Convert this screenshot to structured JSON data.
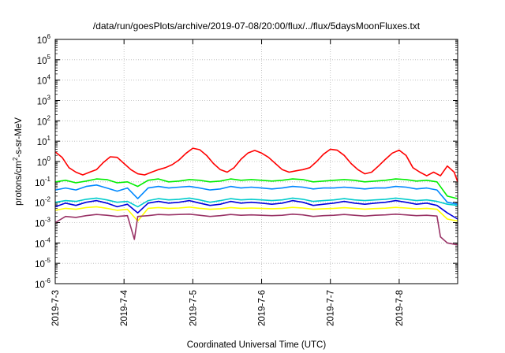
{
  "chart_data": {
    "type": "line",
    "title": "/data/run/goesPlots/archive/2019-07-08/20:00/flux/../flux/5daysMoonFluxes.txt",
    "xlabel": "Coordinated Universal Time (UTC)",
    "ylabel": "protons/cm²-s-sr-MeV",
    "ylabel_parts": {
      "prefix": "protons/cm",
      "sup": "2",
      "suffix": "-s-sr-MeV"
    },
    "yscale": "log",
    "ylim": [
      -6,
      6
    ],
    "xlim": [
      0,
      5.85
    ],
    "x_ticks": [
      {
        "x": 0,
        "label": "2019-7-3"
      },
      {
        "x": 1,
        "label": "2019-7-4"
      },
      {
        "x": 2,
        "label": "2019-7-5"
      },
      {
        "x": 3,
        "label": "2019-7-6"
      },
      {
        "x": 4,
        "label": "2019-7-7"
      },
      {
        "x": 5,
        "label": "2019-7-8"
      }
    ],
    "y_ticks": [
      {
        "exp": 6,
        "base": "10",
        "sup": "6"
      },
      {
        "exp": 5,
        "base": "10",
        "sup": "5"
      },
      {
        "exp": 4,
        "base": "10",
        "sup": "4"
      },
      {
        "exp": 3,
        "base": "10",
        "sup": "3"
      },
      {
        "exp": 2,
        "base": "10",
        "sup": "2"
      },
      {
        "exp": 1,
        "base": "10",
        "sup": "1"
      },
      {
        "exp": 0,
        "base": "10",
        "sup": "0"
      },
      {
        "exp": -1,
        "base": "10",
        "sup": "-1"
      },
      {
        "exp": -2,
        "base": "10",
        "sup": "-2"
      },
      {
        "exp": -3,
        "base": "10",
        "sup": "-3"
      },
      {
        "exp": -4,
        "base": "10",
        "sup": "-4"
      },
      {
        "exp": -5,
        "base": "10",
        "sup": "-5"
      },
      {
        "exp": -6,
        "base": "10",
        "sup": "-6"
      }
    ],
    "grid": true,
    "series": [
      {
        "color": "#ff0000",
        "x": [
          0,
          0.1,
          0.2,
          0.3,
          0.4,
          0.5,
          0.6,
          0.7,
          0.8,
          0.9,
          1.0,
          1.1,
          1.2,
          1.3,
          1.4,
          1.5,
          1.6,
          1.7,
          1.8,
          1.9,
          2.0,
          2.1,
          2.2,
          2.3,
          2.4,
          2.5,
          2.6,
          2.7,
          2.8,
          2.9,
          3.0,
          3.1,
          3.2,
          3.3,
          3.4,
          3.5,
          3.6,
          3.7,
          3.8,
          3.9,
          4.0,
          4.1,
          4.2,
          4.3,
          4.4,
          4.5,
          4.6,
          4.7,
          4.8,
          4.9,
          5.0,
          5.1,
          5.2,
          5.3,
          5.4,
          5.5,
          5.6,
          5.7,
          5.8,
          5.85
        ],
        "y": [
          3.0,
          1.6,
          0.5,
          0.3,
          0.22,
          0.3,
          0.4,
          0.9,
          1.7,
          1.6,
          0.8,
          0.4,
          0.25,
          0.22,
          0.3,
          0.4,
          0.5,
          0.7,
          1.2,
          2.5,
          4.5,
          3.8,
          2.0,
          0.8,
          0.4,
          0.3,
          0.5,
          1.3,
          2.6,
          3.5,
          2.6,
          1.6,
          0.8,
          0.4,
          0.3,
          0.35,
          0.4,
          0.5,
          1.0,
          2.3,
          4.0,
          3.6,
          2.0,
          0.8,
          0.4,
          0.25,
          0.3,
          0.6,
          1.3,
          2.6,
          3.6,
          2.0,
          0.5,
          0.3,
          0.2,
          0.3,
          0.2,
          0.6,
          0.3,
          0.1
        ]
      },
      {
        "color": "#00ee00",
        "x": [
          0,
          0.15,
          0.3,
          0.45,
          0.6,
          0.75,
          0.9,
          1.05,
          1.2,
          1.35,
          1.5,
          1.65,
          1.8,
          1.95,
          2.1,
          2.25,
          2.4,
          2.55,
          2.7,
          2.85,
          3.0,
          3.15,
          3.3,
          3.45,
          3.6,
          3.75,
          3.9,
          4.05,
          4.2,
          4.35,
          4.5,
          4.65,
          4.8,
          4.95,
          5.1,
          5.25,
          5.4,
          5.55,
          5.7,
          5.85
        ],
        "y": [
          0.1,
          0.12,
          0.09,
          0.11,
          0.14,
          0.13,
          0.09,
          0.1,
          0.06,
          0.12,
          0.14,
          0.1,
          0.11,
          0.13,
          0.12,
          0.1,
          0.11,
          0.14,
          0.12,
          0.13,
          0.12,
          0.11,
          0.12,
          0.14,
          0.13,
          0.1,
          0.11,
          0.12,
          0.13,
          0.12,
          0.1,
          0.11,
          0.12,
          0.14,
          0.13,
          0.11,
          0.12,
          0.1,
          0.02,
          0.015
        ]
      },
      {
        "color": "#0088ff",
        "x": [
          0,
          0.15,
          0.3,
          0.45,
          0.6,
          0.75,
          0.9,
          1.05,
          1.2,
          1.35,
          1.5,
          1.65,
          1.8,
          1.95,
          2.1,
          2.25,
          2.4,
          2.55,
          2.7,
          2.85,
          3.0,
          3.15,
          3.3,
          3.45,
          3.6,
          3.75,
          3.9,
          4.05,
          4.2,
          4.35,
          4.5,
          4.65,
          4.8,
          4.95,
          5.1,
          5.25,
          5.4,
          5.55,
          5.7,
          5.85
        ],
        "y": [
          0.04,
          0.05,
          0.04,
          0.06,
          0.07,
          0.05,
          0.035,
          0.05,
          0.015,
          0.05,
          0.06,
          0.05,
          0.055,
          0.06,
          0.05,
          0.04,
          0.045,
          0.06,
          0.05,
          0.055,
          0.05,
          0.045,
          0.05,
          0.06,
          0.055,
          0.045,
          0.05,
          0.05,
          0.055,
          0.05,
          0.045,
          0.05,
          0.05,
          0.06,
          0.055,
          0.045,
          0.05,
          0.04,
          0.01,
          0.008
        ]
      },
      {
        "color": "#00cccc",
        "x": [
          0,
          0.15,
          0.3,
          0.45,
          0.6,
          0.75,
          0.9,
          1.05,
          1.2,
          1.35,
          1.5,
          1.65,
          1.8,
          1.95,
          2.1,
          2.25,
          2.4,
          2.55,
          2.7,
          2.85,
          3.0,
          3.15,
          3.3,
          3.45,
          3.6,
          3.75,
          3.9,
          4.05,
          4.2,
          4.35,
          4.5,
          4.65,
          4.8,
          4.95,
          5.1,
          5.25,
          5.4,
          5.55,
          5.7,
          5.85
        ],
        "y": [
          0.01,
          0.012,
          0.011,
          0.014,
          0.016,
          0.013,
          0.01,
          0.011,
          0.006,
          0.012,
          0.015,
          0.013,
          0.014,
          0.016,
          0.013,
          0.01,
          0.012,
          0.015,
          0.013,
          0.014,
          0.013,
          0.012,
          0.013,
          0.016,
          0.014,
          0.011,
          0.012,
          0.013,
          0.015,
          0.013,
          0.012,
          0.013,
          0.014,
          0.016,
          0.014,
          0.012,
          0.013,
          0.011,
          0.008,
          0.007
        ]
      },
      {
        "color": "#0000dd",
        "x": [
          0,
          0.15,
          0.3,
          0.45,
          0.6,
          0.75,
          0.9,
          1.05,
          1.2,
          1.35,
          1.5,
          1.65,
          1.8,
          1.95,
          2.1,
          2.25,
          2.4,
          2.55,
          2.7,
          2.85,
          3.0,
          3.15,
          3.3,
          3.45,
          3.6,
          3.75,
          3.9,
          4.05,
          4.2,
          4.35,
          4.5,
          4.65,
          4.8,
          4.95,
          5.1,
          5.25,
          5.4,
          5.55,
          5.7,
          5.85
        ],
        "y": [
          0.006,
          0.009,
          0.007,
          0.01,
          0.012,
          0.009,
          0.006,
          0.008,
          0.003,
          0.009,
          0.011,
          0.009,
          0.01,
          0.012,
          0.009,
          0.007,
          0.008,
          0.011,
          0.009,
          0.01,
          0.009,
          0.008,
          0.009,
          0.012,
          0.01,
          0.007,
          0.008,
          0.009,
          0.011,
          0.009,
          0.008,
          0.009,
          0.01,
          0.012,
          0.01,
          0.008,
          0.009,
          0.007,
          0.003,
          0.0015
        ]
      },
      {
        "color": "#ffff00",
        "x": [
          0,
          0.15,
          0.3,
          0.45,
          0.6,
          0.75,
          0.9,
          1.05,
          1.2,
          1.35,
          1.5,
          1.65,
          1.8,
          1.95,
          2.1,
          2.25,
          2.4,
          2.55,
          2.7,
          2.85,
          3.0,
          3.15,
          3.3,
          3.45,
          3.6,
          3.75,
          3.9,
          4.05,
          4.2,
          4.35,
          4.5,
          4.65,
          4.8,
          4.95,
          5.1,
          5.25,
          5.4,
          5.55,
          5.7,
          5.85
        ],
        "y": [
          0.004,
          0.005,
          0.0045,
          0.0055,
          0.006,
          0.005,
          0.004,
          0.0045,
          0.0012,
          0.005,
          0.0055,
          0.005,
          0.0052,
          0.0058,
          0.005,
          0.0045,
          0.0048,
          0.0055,
          0.005,
          0.0052,
          0.005,
          0.0048,
          0.005,
          0.0056,
          0.0052,
          0.0045,
          0.0048,
          0.005,
          0.0054,
          0.005,
          0.0046,
          0.0049,
          0.0051,
          0.0056,
          0.0052,
          0.0047,
          0.005,
          0.0045,
          0.0015,
          0.0012
        ]
      },
      {
        "color": "#993366",
        "x": [
          0,
          0.15,
          0.3,
          0.45,
          0.6,
          0.75,
          0.9,
          1.05,
          1.15,
          1.2,
          1.35,
          1.5,
          1.65,
          1.8,
          1.95,
          2.1,
          2.25,
          2.4,
          2.55,
          2.7,
          2.85,
          3.0,
          3.15,
          3.3,
          3.45,
          3.6,
          3.75,
          3.9,
          4.05,
          4.2,
          4.35,
          4.5,
          4.65,
          4.8,
          4.95,
          5.1,
          5.25,
          5.4,
          5.55,
          5.6,
          5.7,
          5.85
        ],
        "y": [
          0.001,
          0.002,
          0.0018,
          0.0022,
          0.0025,
          0.0023,
          0.002,
          0.0022,
          0.00015,
          0.002,
          0.0022,
          0.0025,
          0.0024,
          0.0025,
          0.0026,
          0.0023,
          0.002,
          0.0022,
          0.0025,
          0.0023,
          0.0024,
          0.0023,
          0.0022,
          0.0023,
          0.0026,
          0.0024,
          0.002,
          0.0022,
          0.0023,
          0.0025,
          0.0023,
          0.0021,
          0.0023,
          0.0024,
          0.0026,
          0.0024,
          0.0022,
          0.0023,
          0.0021,
          0.0002,
          0.0001,
          8e-05
        ]
      }
    ]
  }
}
